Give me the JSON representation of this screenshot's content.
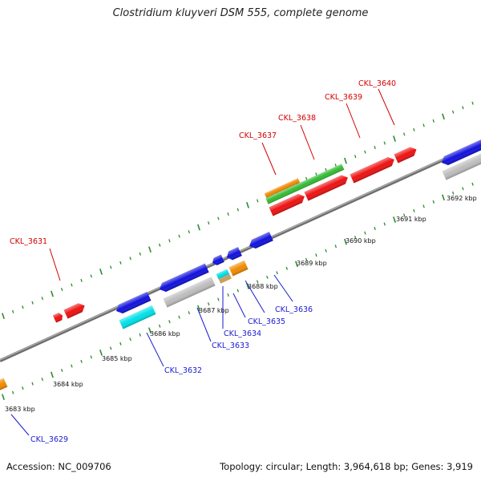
{
  "title": "Clostridium kluyveri DSM 555, complete genome",
  "accession": "Accession: NC_009706",
  "summary": "Topology: circular; Length: 3,964,618 bp; Genes: 3,919",
  "colors": {
    "backbone": "#8c8c8c",
    "tick": "#2e8b2e",
    "red": "#ee1111",
    "green": "#33bb33",
    "orange": "#f08a00",
    "blue": "#1111dd",
    "cyan": "#00e0e8",
    "gray": "#bdbdbd",
    "tan": "#c8a060",
    "label_top": "#d40000",
    "label_bottom": "#1a1ad4"
  },
  "scale_labels": [
    "3683 kbp",
    "3684 kbp",
    "3685 kbp",
    "3686 kbp",
    "3687 kbp",
    "3688 kbp",
    "3689 kbp",
    "3690 kbp",
    "3691 kbp",
    "3692 kbp"
  ],
  "gene_labels_top": [
    "CKL_3631",
    "CKL_3637",
    "CKL_3638",
    "CKL_3639",
    "CKL_3640"
  ],
  "gene_labels_bottom": [
    "CKL_3629",
    "CKL_3632",
    "CKL_3633",
    "CKL_3634",
    "CKL_3635",
    "CKL_3636"
  ]
}
